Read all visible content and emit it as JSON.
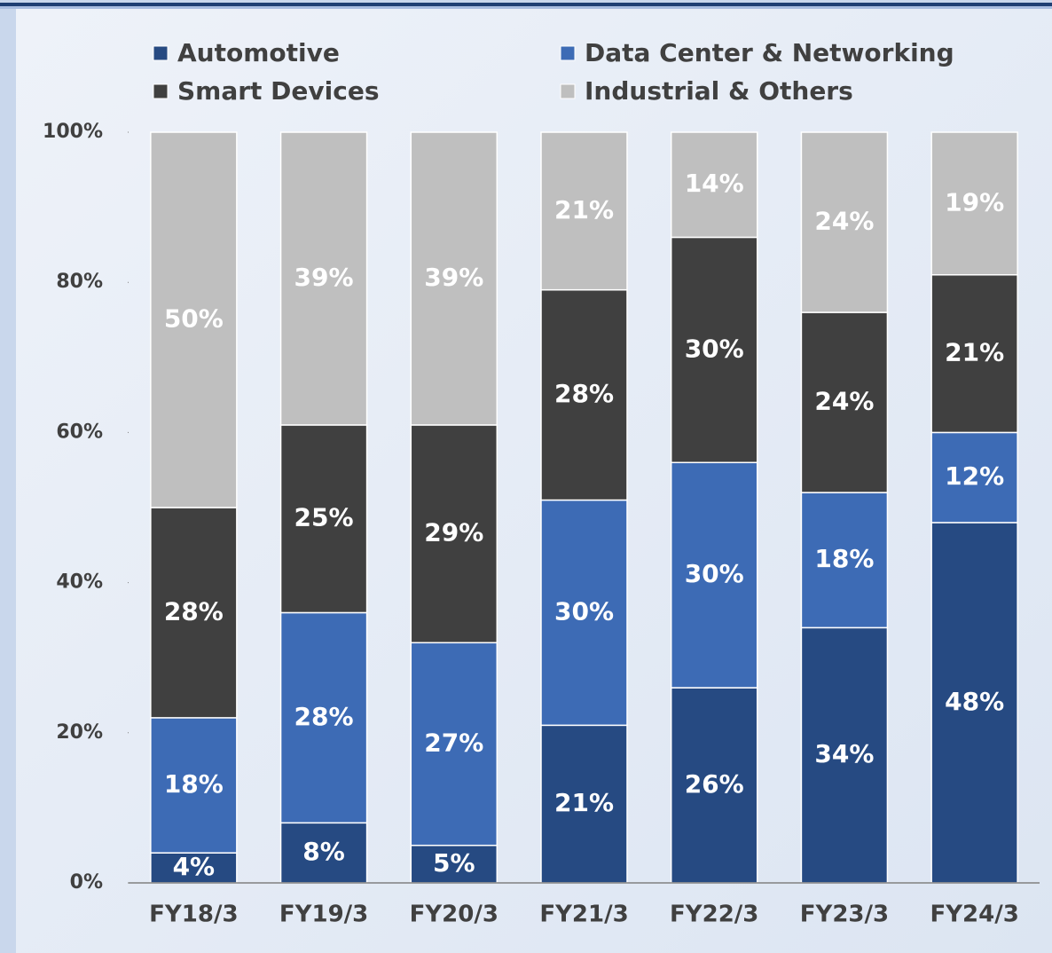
{
  "chart_data": {
    "type": "stacked_bar",
    "categories": [
      "FY18/3",
      "FY19/3",
      "FY20/3",
      "FY21/3",
      "FY22/3",
      "FY23/3",
      "FY24/3"
    ],
    "series": [
      {
        "name": "Automotive",
        "color": "#264a82",
        "values": [
          4,
          8,
          5,
          21,
          26,
          34,
          48
        ],
        "value_labels": [
          "4%",
          "8%",
          "5%",
          "21%",
          "26%",
          "34%",
          "48%"
        ]
      },
      {
        "name": "Data Center & Networking",
        "color": "#3d6bb5",
        "values": [
          18,
          28,
          27,
          30,
          30,
          18,
          12
        ],
        "value_labels": [
          "18%",
          "28%",
          "27%",
          "30%",
          "30%",
          "18%",
          "12%"
        ]
      },
      {
        "name": "Smart Devices",
        "color": "#404040",
        "values": [
          28,
          25,
          29,
          28,
          30,
          24,
          21
        ],
        "value_labels": [
          "28%",
          "25%",
          "29%",
          "28%",
          "30%",
          "24%",
          "21%"
        ]
      },
      {
        "name": "Industrial & Others",
        "color": "#bfbfbf",
        "values": [
          50,
          39,
          39,
          21,
          14,
          24,
          19
        ],
        "value_labels": [
          "50%",
          "39%",
          "39%",
          "21%",
          "14%",
          "24%",
          "19%"
        ]
      }
    ],
    "ylim": [
      0,
      100
    ],
    "yticks": [
      {
        "value": 0,
        "label": "0%"
      },
      {
        "value": 20,
        "label": "20%"
      },
      {
        "value": 40,
        "label": "40%"
      },
      {
        "value": 60,
        "label": "60%"
      },
      {
        "value": 80,
        "label": "80%"
      },
      {
        "value": 100,
        "label": "100%"
      }
    ],
    "legend": "top"
  }
}
